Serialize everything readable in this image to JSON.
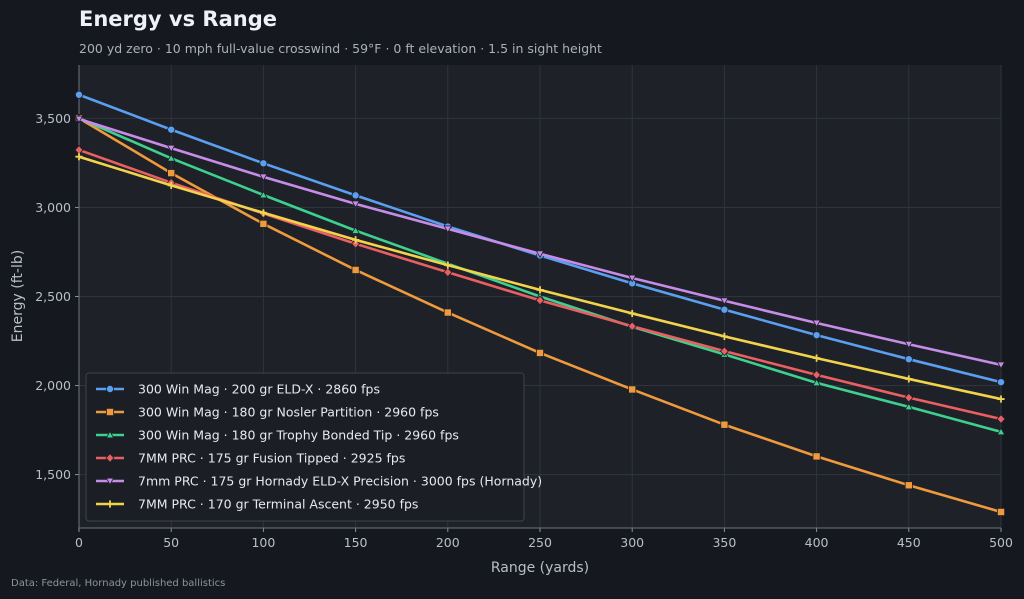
{
  "chart_data": {
    "type": "line",
    "title": "Energy vs Range",
    "subtitle": "200 yd zero  ·  10 mph full-value crosswind  ·  59°F  ·  0 ft elevation  ·  1.5 in sight height",
    "xlabel": "Range (yards)",
    "ylabel": "Energy (ft-lb)",
    "source": "Data: Federal, Hornady published ballistics",
    "xlim": [
      0,
      500
    ],
    "ylim": [
      1200,
      3800
    ],
    "x_ticks": [
      0,
      50,
      100,
      150,
      200,
      250,
      300,
      350,
      400,
      450,
      500
    ],
    "y_ticks": [
      1500,
      2000,
      2500,
      3000,
      3500
    ],
    "y_tick_labels": [
      "1,500",
      "2,000",
      "2,500",
      "3,000",
      "3,500"
    ],
    "grid": true,
    "legend_position": "lower-left",
    "x": [
      0,
      50,
      100,
      150,
      200,
      250,
      300,
      350,
      400,
      450,
      500
    ],
    "series": [
      {
        "name": "300 Win Mag · 200 gr ELD-X · 2860 fps",
        "color": "#5b9ff0",
        "marker": "circle",
        "values": [
          3633,
          3437,
          3248,
          3068,
          2893,
          2730,
          2574,
          2426,
          2283,
          2148,
          2019
        ]
      },
      {
        "name": "300 Win Mag · 180 gr Nosler Partition · 2960 fps",
        "color": "#ef9a3c",
        "marker": "square",
        "values": [
          3501,
          3193,
          2908,
          2649,
          2410,
          2183,
          1978,
          1780,
          1602,
          1440,
          1290
        ]
      },
      {
        "name": "300 Win Mag · 180 gr Trophy Bonded Tip · 2960 fps",
        "color": "#3ed08e",
        "marker": "triangle-up",
        "values": [
          3501,
          3276,
          3070,
          2870,
          2684,
          2500,
          2330,
          2175,
          2015,
          1880,
          1740
        ]
      },
      {
        "name": "7MM PRC · 175 gr Fusion Tipped · 2925 fps",
        "color": "#ea5f62",
        "marker": "diamond",
        "values": [
          3323,
          3139,
          2966,
          2796,
          2636,
          2478,
          2333,
          2193,
          2060,
          1932,
          1812
        ]
      },
      {
        "name": "7mm PRC · 175 gr Hornady ELD-X Precision · 3000 fps (Hornady)",
        "color": "#c78ce8",
        "marker": "triangle-down",
        "values": [
          3497,
          3333,
          3172,
          3020,
          2880,
          2740,
          2604,
          2476,
          2351,
          2232,
          2116
        ]
      },
      {
        "name": "7MM PRC · 170 gr Terminal Ascent · 2950 fps",
        "color": "#f2d44c",
        "marker": "plus",
        "values": [
          3285,
          3124,
          2970,
          2818,
          2676,
          2537,
          2405,
          2276,
          2154,
          2037,
          1924
        ]
      }
    ]
  }
}
